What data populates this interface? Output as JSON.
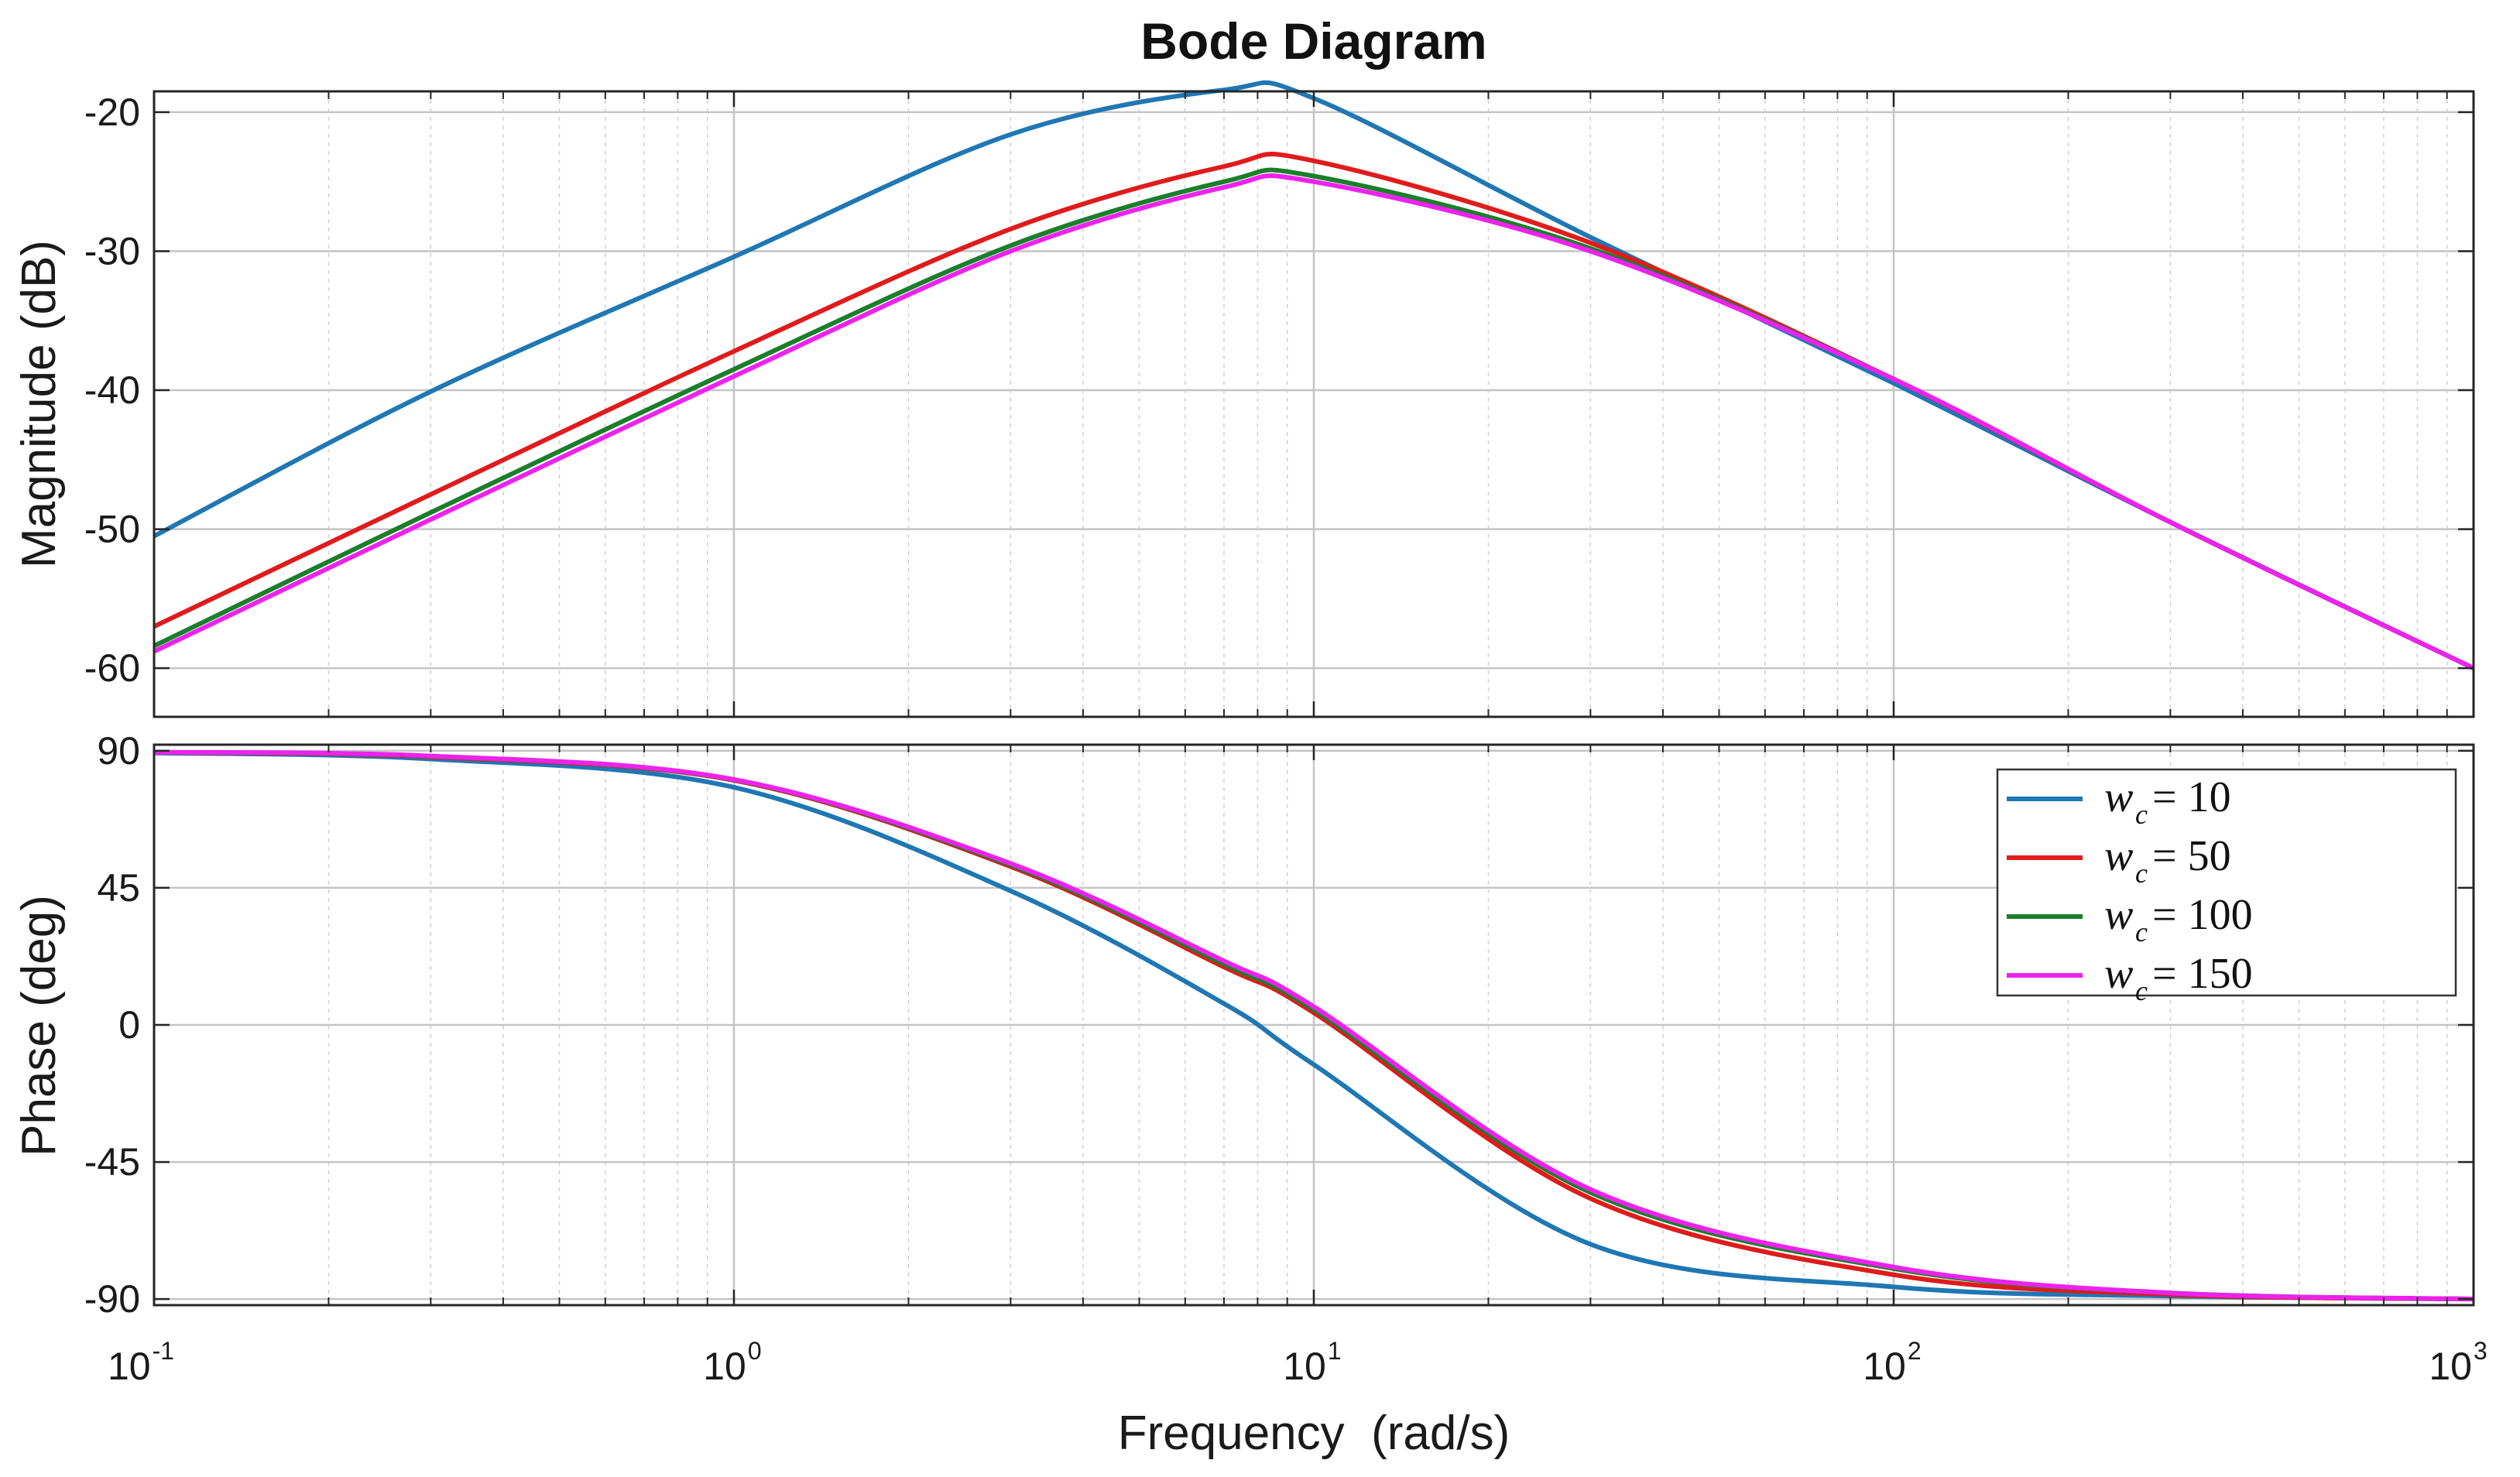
{
  "chart_data": {
    "type": "line",
    "title": "Bode Diagram",
    "xlabel": "Frequency  (rad/s)",
    "xscale": "log",
    "xlim": [
      0.1,
      1000
    ],
    "x_ticks": [
      {
        "base": "10",
        "exp": "-1"
      },
      {
        "base": "10",
        "exp": "0"
      },
      {
        "base": "10",
        "exp": "1"
      },
      {
        "base": "10",
        "exp": "2"
      },
      {
        "base": "10",
        "exp": "3"
      }
    ],
    "magnitude": {
      "ylabel": "Magnitude (dB)",
      "ylim": [
        -63.5,
        -18.5
      ],
      "yticks": [
        -20,
        -30,
        -40,
        -50,
        -60
      ]
    },
    "phase": {
      "ylabel": "Phase (deg)",
      "ylim": [
        -92,
        92
      ],
      "yticks": [
        90,
        45,
        0,
        -45,
        -90
      ]
    },
    "grid": true,
    "legend_position": "top-right of phase plot",
    "series": [
      {
        "name": "w_c = 10",
        "legend": {
          "var": "w",
          "sub": "c",
          "rest": " = 10"
        },
        "color": "#1f77b4",
        "wc": 10,
        "freq": [
          0.1,
          0.3,
          1,
          3,
          7,
          10,
          30,
          100,
          300,
          1000
        ],
        "mag_db": [
          -50.5,
          -40.1,
          -30.4,
          -21.6,
          -18.4,
          -19.0,
          -29.0,
          -39.5,
          -49.5,
          -60.0
        ],
        "phase_deg": [
          89.3,
          87.3,
          78.0,
          44.0,
          7.0,
          -13.0,
          -72.0,
          -86.0,
          -89.0,
          -90.0
        ]
      },
      {
        "name": "w_c = 50",
        "legend": {
          "var": "w",
          "sub": "c",
          "rest": " = 50"
        },
        "color": "#e01b1b",
        "wc": 50,
        "freq": [
          0.1,
          0.3,
          1,
          3,
          7,
          10,
          30,
          100,
          300,
          1000
        ],
        "mag_db": [
          -57.0,
          -47.5,
          -37.2,
          -28.4,
          -23.9,
          -23.5,
          -29.4,
          -39.2,
          -49.5,
          -60.0
        ],
        "phase_deg": [
          89.5,
          88.0,
          80.3,
          52.0,
          19.0,
          4.0,
          -57.0,
          -82.0,
          -88.5,
          -90.0
        ]
      },
      {
        "name": "w_c = 100",
        "legend": {
          "var": "w",
          "sub": "c",
          "rest": " = 100"
        },
        "color": "#1a7f2a",
        "wc": 100,
        "freq": [
          0.1,
          0.3,
          1,
          3,
          7,
          10,
          30,
          100,
          300,
          1000
        ],
        "mag_db": [
          -58.4,
          -48.8,
          -38.5,
          -29.6,
          -25.0,
          -24.6,
          -29.8,
          -39.2,
          -49.5,
          -60.0
        ],
        "phase_deg": [
          89.5,
          88.2,
          80.5,
          52.5,
          20.0,
          5.0,
          -55.0,
          -80.0,
          -88.0,
          -90.0
        ]
      },
      {
        "name": "w_c = 150",
        "legend": {
          "var": "w",
          "sub": "c",
          "rest": " = 150"
        },
        "color": "#ee22ee",
        "wc": 150,
        "freq": [
          0.1,
          0.3,
          1,
          3,
          7,
          10,
          30,
          100,
          300,
          1000
        ],
        "mag_db": [
          -58.8,
          -49.3,
          -39.0,
          -30.0,
          -25.4,
          -25.0,
          -30.0,
          -39.2,
          -49.5,
          -60.0
        ],
        "phase_deg": [
          89.5,
          88.3,
          80.6,
          53.0,
          21.0,
          6.0,
          -54.0,
          -79.5,
          -88.0,
          -90.0
        ]
      }
    ]
  }
}
